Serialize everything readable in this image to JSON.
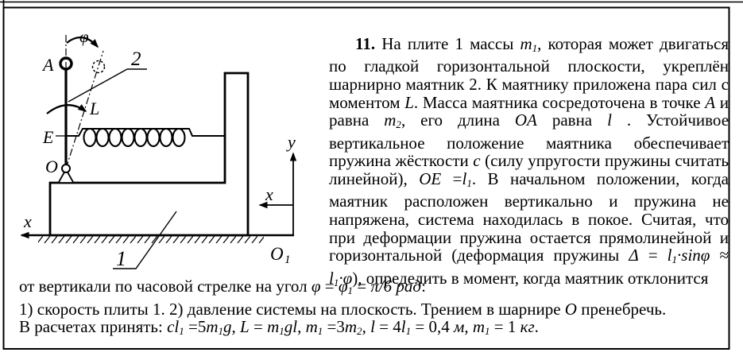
{
  "figure": {
    "labels": {
      "phi": "φ",
      "point_a": "A",
      "pendulum_2": "2",
      "moment_l": "L",
      "point_e": "E",
      "pivot_o": "O",
      "axis_x_left": "x",
      "axis_x_right": "x",
      "axis_y": "y",
      "origin_o": "O",
      "origin_sub": "1",
      "plate_1": "1"
    }
  },
  "problem": {
    "lines": [
      [
        {
          "t": "11.",
          "b": true
        },
        {
          "t": " На плите 1 массы "
        },
        {
          "t": "m",
          "i": true
        },
        {
          "t": "1",
          "i": true,
          "sub": true
        },
        {
          "t": ", которая может двигаться"
        }
      ],
      [
        {
          "t": "по гладкой горизонтальной плоскости, укреплён"
        }
      ],
      [
        {
          "t": "шарнирно маятник 2. К маятнику приложена пара сил с"
        }
      ],
      [
        {
          "t": "моментом "
        },
        {
          "t": "L",
          "i": true
        },
        {
          "t": ". Масса маятника сосредоточена в точке "
        },
        {
          "t": "A",
          "i": true
        },
        {
          "t": " и"
        }
      ],
      [
        {
          "t": "равна "
        },
        {
          "t": "m",
          "i": true
        },
        {
          "t": "2",
          "i": true,
          "sub": true
        },
        {
          "t": ", его длина "
        },
        {
          "t": "OA",
          "i": true
        },
        {
          "t": " равна "
        },
        {
          "t": "l",
          "i": true
        },
        {
          "t": " . Устойчивое"
        }
      ],
      [
        {
          "t": "вертикальное положение маятника обеспечивает"
        }
      ],
      [
        {
          "t": "пружина жёсткости "
        },
        {
          "t": "c",
          "i": true
        },
        {
          "t": " (силу упругости пружины считать"
        }
      ],
      [
        {
          "t": "линейной), "
        },
        {
          "t": "OE",
          "i": true
        },
        {
          "t": " ="
        },
        {
          "t": "l",
          "i": true
        },
        {
          "t": "1",
          "i": true,
          "sub": true
        },
        {
          "t": ". В начальном положении, когда"
        }
      ],
      [
        {
          "t": "маятник расположен вертикально и пружина не"
        }
      ],
      [
        {
          "t": "напряжена, система находилась в покое. Считая, что"
        }
      ],
      [
        {
          "t": "при деформации пружина остается прямолинейной и"
        }
      ],
      [
        {
          "t": "горизонтальной (деформация пружины "
        },
        {
          "t": "Δ",
          "i": true
        },
        {
          "t": " = "
        },
        {
          "t": "l",
          "i": true
        },
        {
          "t": "1",
          "i": true,
          "sub": true
        },
        {
          "t": "·sinφ",
          "i": true
        },
        {
          "t": " ≈"
        }
      ],
      [
        {
          "t": "l",
          "i": true
        },
        {
          "t": "1",
          "i": true,
          "sub": true
        },
        {
          "t": "·φ",
          "i": true
        },
        {
          "t": "), определить в момент, когда маятник отклонится"
        }
      ]
    ],
    "footer": [
      [
        {
          "t": "от вертикали по часовой стрелке на угол "
        },
        {
          "t": "φ",
          "i": true
        },
        {
          "t": " = "
        },
        {
          "t": "φ",
          "i": true
        },
        {
          "t": "1",
          "i": true,
          "sub": true
        },
        {
          "t": " = "
        },
        {
          "t": "π/6 рад",
          "i": true
        },
        {
          "t": ":"
        }
      ],
      [
        {
          "t": "1) скорость плиты 1. 2) давление системы на плоскость. Трением в шарнире "
        },
        {
          "t": "O",
          "i": true
        },
        {
          "t": " пренебречь."
        }
      ],
      [
        {
          "t": "В расчетах принять: "
        },
        {
          "t": "cl",
          "i": true
        },
        {
          "t": "1",
          "i": true,
          "sub": true
        },
        {
          "t": " =5"
        },
        {
          "t": "m",
          "i": true
        },
        {
          "t": "1",
          "i": true,
          "sub": true
        },
        {
          "t": "g",
          "i": true
        },
        {
          "t": ", "
        },
        {
          "t": "L",
          "i": true
        },
        {
          "t": " = "
        },
        {
          "t": "m",
          "i": true
        },
        {
          "t": "1",
          "i": true,
          "sub": true
        },
        {
          "t": "gl",
          "i": true
        },
        {
          "t": ", "
        },
        {
          "t": "m",
          "i": true
        },
        {
          "t": "1",
          "i": true,
          "sub": true
        },
        {
          "t": " =3"
        },
        {
          "t": "m",
          "i": true
        },
        {
          "t": "2",
          "i": true,
          "sub": true
        },
        {
          "t": ", "
        },
        {
          "t": "l",
          "i": true
        },
        {
          "t": " = 4"
        },
        {
          "t": "l",
          "i": true
        },
        {
          "t": "1",
          "i": true,
          "sub": true
        },
        {
          "t": " = 0,4 "
        },
        {
          "t": "м",
          "i": true
        },
        {
          "t": ", "
        },
        {
          "t": "m",
          "i": true
        },
        {
          "t": "1",
          "i": true,
          "sub": true
        },
        {
          "t": " = 1 "
        },
        {
          "t": "кг",
          "i": true
        },
        {
          "t": "."
        }
      ]
    ]
  }
}
